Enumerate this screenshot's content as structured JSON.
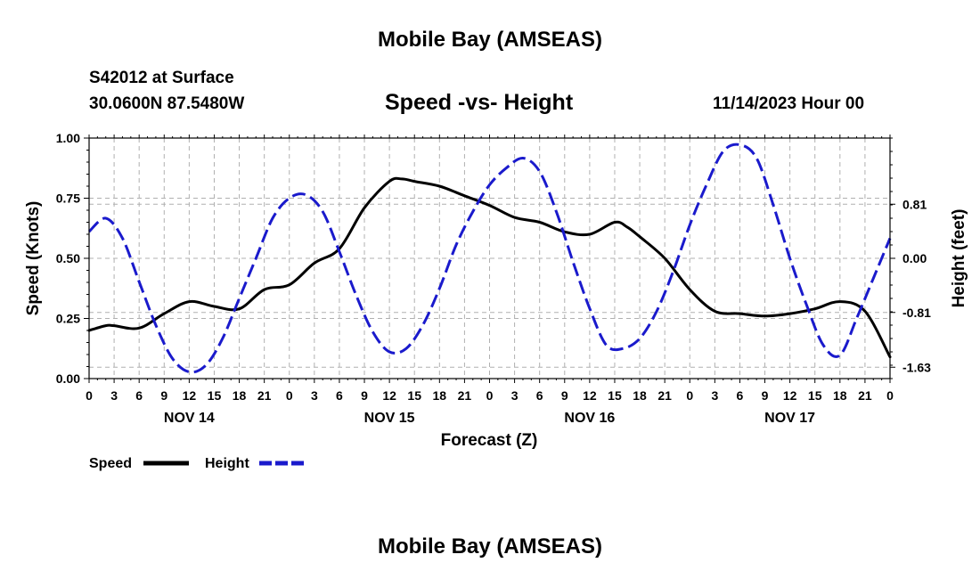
{
  "header": {
    "title": "Mobile Bay (AMSEAS)",
    "station": "S42012 at Surface",
    "coords": "30.0600N  87.5480W",
    "chart_title": "Speed -vs- Height",
    "date": "11/14/2023 Hour 00"
  },
  "footer": {
    "title": "Mobile Bay (AMSEAS)"
  },
  "colors": {
    "speed": "#000000",
    "height": "#1a1acc",
    "grid": "#b0b0b0",
    "axis": "#000000"
  },
  "chart_data": {
    "type": "line",
    "title": "Speed -vs- Height",
    "xlabel": "Forecast (Z)",
    "ylabel": "Speed (Knots)",
    "y2label": "Height (feet)",
    "xlim": [
      0,
      96
    ],
    "ylim": [
      0,
      1
    ],
    "y2lim": [
      -1.8,
      1.8
    ],
    "grid": true,
    "legend_position": "bottom-left",
    "x_tick_labels": [
      "0",
      "3",
      "6",
      "9",
      "12",
      "15",
      "18",
      "21",
      "0",
      "3",
      "6",
      "9",
      "12",
      "15",
      "18",
      "21",
      "0",
      "3",
      "6",
      "9",
      "12",
      "15",
      "18",
      "21",
      "0",
      "3",
      "6",
      "9",
      "12",
      "15",
      "18",
      "21",
      "0"
    ],
    "day_labels": [
      {
        "label": "NOV 14",
        "hour": 12
      },
      {
        "label": "NOV 15",
        "hour": 36
      },
      {
        "label": "NOV 16",
        "hour": 60
      },
      {
        "label": "NOV 17",
        "hour": 84
      }
    ],
    "y_ticks": [
      {
        "value": 0,
        "label": "0.00"
      },
      {
        "value": 0.25,
        "label": "0.25"
      },
      {
        "value": 0.5,
        "label": "0.50"
      },
      {
        "value": 0.75,
        "label": "0.75"
      },
      {
        "value": 1,
        "label": "1.00"
      }
    ],
    "y2_ticks": [
      {
        "value": -1.63,
        "label": "-1.63"
      },
      {
        "value": -0.81,
        "label": "-0.81"
      },
      {
        "value": 0,
        "label": "0.00"
      },
      {
        "value": 0.81,
        "label": "0.81"
      }
    ],
    "series": [
      {
        "name": "Speed",
        "axis": "left",
        "style": "solid",
        "x": [
          0,
          2,
          3,
          6,
          9,
          12,
          15,
          18,
          21,
          24,
          27,
          30,
          33,
          36,
          37.5,
          39,
          42,
          45,
          48,
          51,
          54,
          57,
          60,
          63,
          64.5,
          66,
          69,
          72,
          75,
          78,
          81,
          84,
          87,
          90,
          93,
          96
        ],
        "y": [
          0.2,
          0.22,
          0.22,
          0.21,
          0.27,
          0.32,
          0.3,
          0.29,
          0.37,
          0.39,
          0.48,
          0.54,
          0.71,
          0.82,
          0.83,
          0.82,
          0.8,
          0.76,
          0.72,
          0.67,
          0.65,
          0.61,
          0.6,
          0.65,
          0.63,
          0.59,
          0.5,
          0.37,
          0.28,
          0.27,
          0.26,
          0.27,
          0.29,
          0.32,
          0.28,
          0.09
        ]
      },
      {
        "name": "Height",
        "axis": "right",
        "style": "dashed",
        "x": [
          0,
          2,
          4,
          6,
          8,
          10,
          12,
          14,
          16,
          18,
          20,
          22,
          24,
          26,
          28,
          30,
          32,
          34,
          36,
          38,
          40,
          42,
          44,
          46,
          48,
          50,
          52,
          54,
          56,
          58,
          60,
          62,
          64,
          66,
          68,
          70,
          72,
          74,
          76,
          78,
          80,
          82,
          84,
          86,
          88,
          90,
          92,
          94,
          96
        ],
        "y": [
          0.4,
          0.6,
          0.3,
          -0.35,
          -1.0,
          -1.5,
          -1.7,
          -1.6,
          -1.2,
          -0.6,
          0.0,
          0.6,
          0.9,
          0.95,
          0.7,
          0.1,
          -0.55,
          -1.1,
          -1.4,
          -1.35,
          -1.0,
          -0.45,
          0.2,
          0.7,
          1.1,
          1.35,
          1.5,
          1.3,
          0.7,
          -0.05,
          -0.75,
          -1.3,
          -1.35,
          -1.2,
          -0.8,
          -0.2,
          0.5,
          1.1,
          1.6,
          1.7,
          1.5,
          0.8,
          0.0,
          -0.7,
          -1.3,
          -1.45,
          -0.9,
          -0.3,
          0.3
        ]
      }
    ]
  }
}
